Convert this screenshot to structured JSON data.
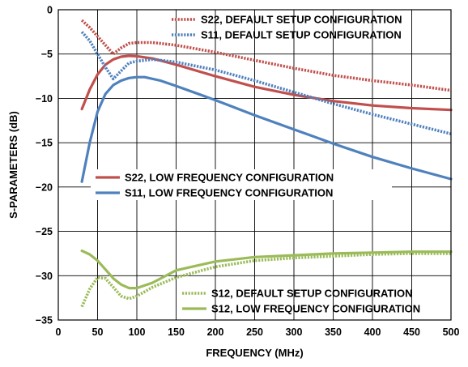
{
  "chart_data": {
    "type": "line",
    "title": "",
    "xlabel": "FREQUENCY (MHz)",
    "ylabel": "S-PARAMETERS (dB)",
    "xlim": [
      0,
      500
    ],
    "ylim": [
      -35,
      0
    ],
    "xticks": [
      0,
      50,
      100,
      150,
      200,
      250,
      300,
      350,
      400,
      450,
      500
    ],
    "yticks": [
      0,
      -5,
      -10,
      -15,
      -20,
      -25,
      -30,
      -35
    ],
    "x_tick_labels": [
      "0",
      "50",
      "100",
      "150",
      "200",
      "250",
      "300",
      "350",
      "400",
      "450",
      "500"
    ],
    "y_tick_labels": [
      "0",
      "−5",
      "−10",
      "−15",
      "−20",
      "−25",
      "−30",
      "−35"
    ],
    "grid": true,
    "series": [
      {
        "name": "S22, DEFAULT SETUP CONFIGURATION",
        "color": "#c0504d",
        "style": "dotted",
        "legend_group": "top",
        "x": [
          30,
          40,
          50,
          60,
          70,
          80,
          90,
          100,
          120,
          150,
          200,
          250,
          300,
          350,
          400,
          450,
          500
        ],
        "y": [
          -1.2,
          -2.0,
          -3.0,
          -4.0,
          -5.0,
          -4.3,
          -3.8,
          -3.7,
          -3.7,
          -4.0,
          -4.8,
          -5.7,
          -6.6,
          -7.4,
          -8.0,
          -8.5,
          -9.1
        ]
      },
      {
        "name": "S11, DEFAULT SETUP CONFIGURATION",
        "color": "#4f81bd",
        "style": "dotted",
        "legend_group": "top",
        "x": [
          30,
          40,
          50,
          60,
          70,
          80,
          90,
          100,
          120,
          150,
          200,
          250,
          300,
          350,
          400,
          450,
          500
        ],
        "y": [
          -2.5,
          -3.5,
          -5.0,
          -6.5,
          -7.8,
          -6.9,
          -6.0,
          -5.8,
          -5.6,
          -5.9,
          -6.8,
          -8.0,
          -9.3,
          -10.6,
          -11.8,
          -12.9,
          -14.0
        ]
      },
      {
        "name": "S22, LOW FREQUENCY CONFIGURATION",
        "color": "#c0504d",
        "style": "solid",
        "legend_group": "middle",
        "x": [
          30,
          40,
          50,
          60,
          70,
          80,
          90,
          100,
          120,
          150,
          200,
          250,
          300,
          350,
          400,
          450,
          500
        ],
        "y": [
          -11.2,
          -9.0,
          -7.3,
          -6.2,
          -5.6,
          -5.3,
          -5.2,
          -5.25,
          -5.5,
          -6.2,
          -7.5,
          -8.7,
          -9.6,
          -10.3,
          -10.8,
          -11.1,
          -11.3
        ]
      },
      {
        "name": "S11, LOW FREQUENCY CONFIGURATION",
        "color": "#4f81bd",
        "style": "solid",
        "legend_group": "middle",
        "x": [
          30,
          40,
          50,
          60,
          70,
          80,
          90,
          100,
          110,
          130,
          150,
          200,
          250,
          300,
          350,
          400,
          450,
          500
        ],
        "y": [
          -19.4,
          -15.0,
          -11.5,
          -9.5,
          -8.5,
          -8.0,
          -7.7,
          -7.6,
          -7.6,
          -8.0,
          -8.6,
          -10.2,
          -11.9,
          -13.5,
          -15.1,
          -16.6,
          -17.9,
          -19.1
        ]
      },
      {
        "name": "S12, DEFAULT SETUP CONFIGURATION",
        "color": "#9bbb59",
        "style": "dotted",
        "legend_group": "bottom",
        "x": [
          30,
          40,
          50,
          60,
          70,
          80,
          90,
          100,
          120,
          150,
          200,
          250,
          300,
          350,
          400,
          450,
          500
        ],
        "y": [
          -33.5,
          -31.5,
          -30.2,
          -30.3,
          -31.3,
          -32.3,
          -32.6,
          -32.3,
          -31.3,
          -30.2,
          -29.0,
          -28.3,
          -28.0,
          -27.8,
          -27.6,
          -27.5,
          -27.5
        ]
      },
      {
        "name": "S12, LOW FREQUENCY CONFIGURATION",
        "color": "#9bbb59",
        "style": "solid",
        "legend_group": "bottom",
        "x": [
          30,
          40,
          50,
          60,
          70,
          80,
          90,
          100,
          120,
          150,
          200,
          250,
          300,
          350,
          400,
          450,
          500
        ],
        "y": [
          -27.2,
          -27.6,
          -28.3,
          -29.3,
          -30.3,
          -31.0,
          -31.4,
          -31.4,
          -30.8,
          -29.4,
          -28.4,
          -27.9,
          -27.7,
          -27.5,
          -27.4,
          -27.3,
          -27.3
        ]
      }
    ]
  }
}
